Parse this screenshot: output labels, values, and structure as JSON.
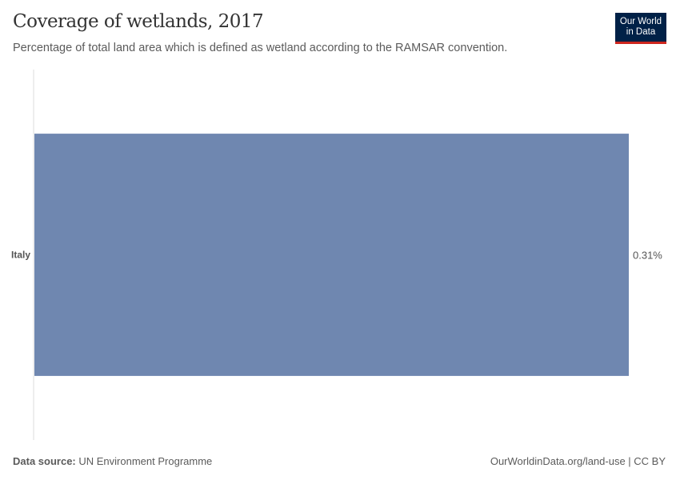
{
  "header": {
    "title": "Coverage of wetlands, 2017",
    "subtitle": "Percentage of total land area which is defined as wetland according to the RAMSAR convention."
  },
  "logo": {
    "line1": "Our World",
    "line2": "in Data"
  },
  "chart_data": {
    "type": "bar",
    "orientation": "horizontal",
    "categories": [
      "Italy"
    ],
    "values": [
      0.31
    ],
    "value_labels": [
      "0.31%"
    ],
    "xlim": [
      0,
      0.31
    ],
    "bar_color": "#6f87b0",
    "grid": false
  },
  "footer": {
    "source_label": "Data source:",
    "source": "UN Environment Programme",
    "url": "OurWorldinData.org/land-use | CC BY"
  }
}
